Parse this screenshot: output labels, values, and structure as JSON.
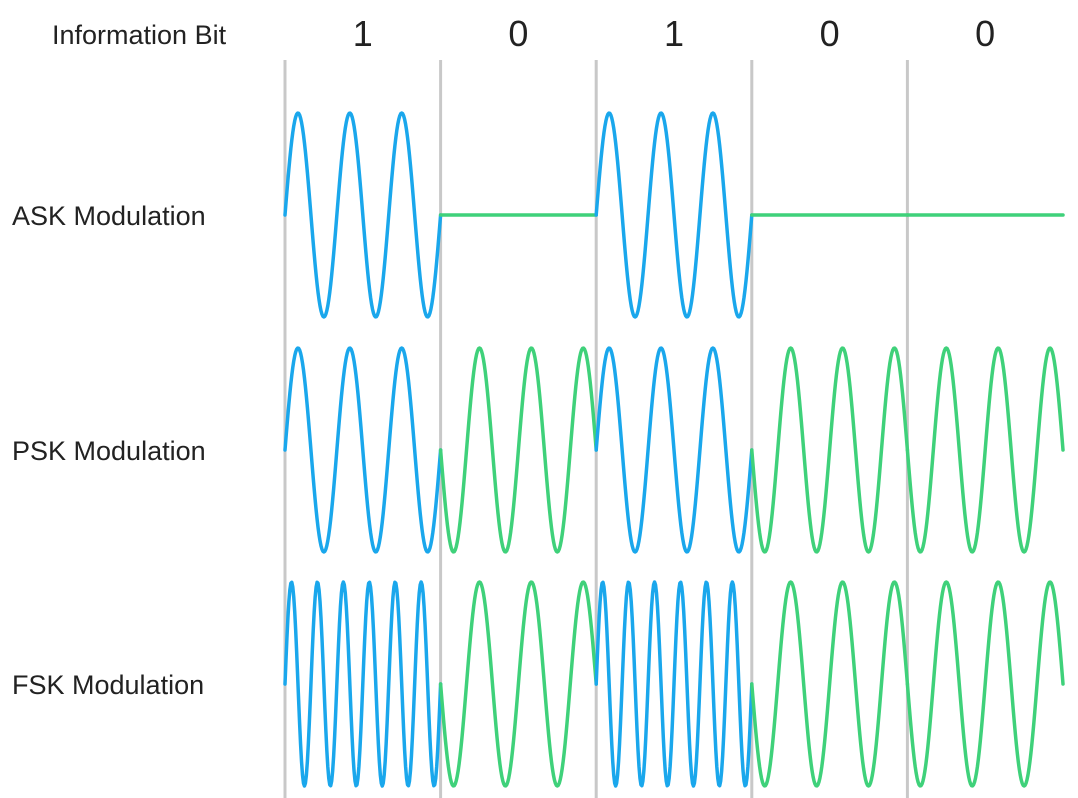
{
  "header": {
    "label": "Information Bit"
  },
  "bits": [
    "1",
    "0",
    "1",
    "0",
    "0"
  ],
  "rows": [
    {
      "label": "ASK Modulation",
      "scheme": "ASK"
    },
    {
      "label": "PSK Modulation",
      "scheme": "PSK"
    },
    {
      "label": "FSK Modulation",
      "scheme": "FSK"
    }
  ],
  "colors": {
    "one": "#1aa7ec",
    "zero": "#3fd17a",
    "divider": "#c8c8c8",
    "text": "#222222"
  }
}
